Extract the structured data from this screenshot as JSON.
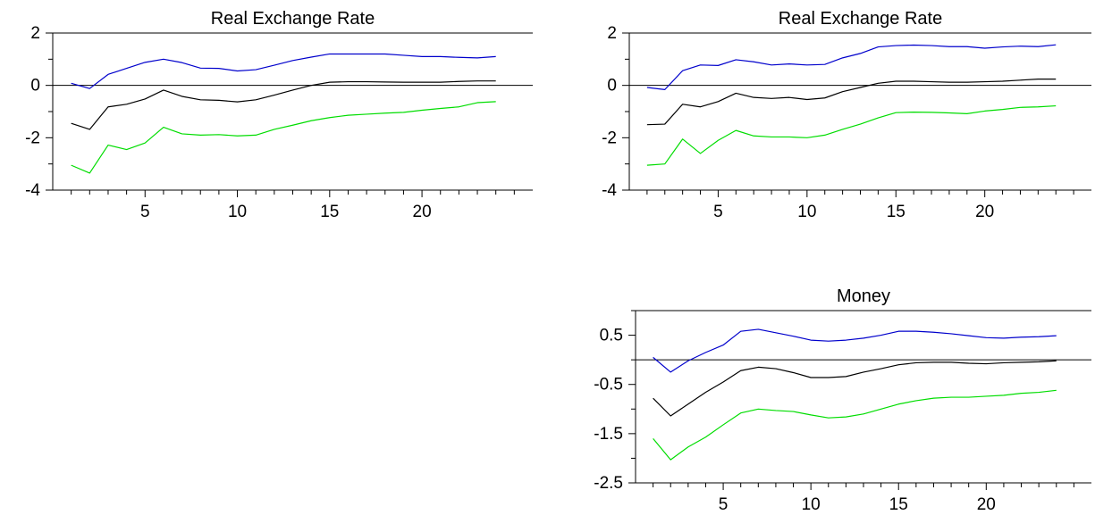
{
  "chart_data": [
    {
      "type": "line",
      "title": "Real Exchange Rate",
      "xlabel": "",
      "ylabel": "",
      "x": [
        1,
        2,
        3,
        4,
        5,
        6,
        7,
        8,
        9,
        10,
        11,
        12,
        13,
        14,
        15,
        16,
        17,
        18,
        19,
        20,
        21,
        22,
        23,
        24
      ],
      "xticks": [
        5,
        10,
        15,
        20
      ],
      "xtick_labels": [
        "5",
        "10",
        "15",
        "20"
      ],
      "yticks": [
        2,
        0,
        -2,
        -4
      ],
      "ytick_labels": [
        "2",
        "0",
        "-2",
        "-4"
      ],
      "xlim": [
        0,
        26
      ],
      "ylim": [
        -4,
        2
      ],
      "grid": false,
      "zero_line": true,
      "series": [
        {
          "color": "#0000cc",
          "values": [
            0.08,
            -0.12,
            0.42,
            0.65,
            0.88,
            1.0,
            0.87,
            0.66,
            0.65,
            0.55,
            0.6,
            0.77,
            0.95,
            1.08,
            1.2,
            1.2,
            1.2,
            1.2,
            1.15,
            1.1,
            1.1,
            1.07,
            1.05,
            1.1
          ]
        },
        {
          "color": "#000000",
          "values": [
            -1.45,
            -1.68,
            -0.82,
            -0.72,
            -0.52,
            -0.18,
            -0.42,
            -0.55,
            -0.57,
            -0.63,
            -0.55,
            -0.37,
            -0.18,
            0.0,
            0.12,
            0.14,
            0.14,
            0.13,
            0.12,
            0.12,
            0.12,
            0.15,
            0.17,
            0.17
          ]
        },
        {
          "color": "#00dd00",
          "values": [
            -3.05,
            -3.35,
            -2.28,
            -2.45,
            -2.2,
            -1.6,
            -1.85,
            -1.9,
            -1.88,
            -1.93,
            -1.9,
            -1.68,
            -1.52,
            -1.35,
            -1.23,
            -1.14,
            -1.1,
            -1.06,
            -1.03,
            -0.95,
            -0.88,
            -0.82,
            -0.66,
            -0.62
          ]
        }
      ]
    },
    {
      "type": "line",
      "title": "Real Exchange Rate",
      "xlabel": "",
      "ylabel": "",
      "x": [
        1,
        2,
        3,
        4,
        5,
        6,
        7,
        8,
        9,
        10,
        11,
        12,
        13,
        14,
        15,
        16,
        17,
        18,
        19,
        20,
        21,
        22,
        23,
        24
      ],
      "xticks": [
        5,
        10,
        15,
        20
      ],
      "xtick_labels": [
        "5",
        "10",
        "15",
        "20"
      ],
      "yticks": [
        2,
        0,
        -2,
        -4
      ],
      "ytick_labels": [
        "2",
        "0",
        "-2",
        "-4"
      ],
      "xlim": [
        0,
        26
      ],
      "ylim": [
        -4,
        2
      ],
      "grid": false,
      "zero_line": true,
      "series": [
        {
          "color": "#0000cc",
          "values": [
            -0.08,
            -0.16,
            0.56,
            0.78,
            0.76,
            0.98,
            0.9,
            0.78,
            0.82,
            0.78,
            0.8,
            1.05,
            1.22,
            1.47,
            1.52,
            1.54,
            1.52,
            1.48,
            1.48,
            1.42,
            1.47,
            1.5,
            1.48,
            1.55
          ]
        },
        {
          "color": "#000000",
          "values": [
            -1.5,
            -1.48,
            -0.72,
            -0.82,
            -0.62,
            -0.3,
            -0.46,
            -0.5,
            -0.46,
            -0.54,
            -0.48,
            -0.24,
            -0.08,
            0.08,
            0.16,
            0.16,
            0.14,
            0.12,
            0.12,
            0.14,
            0.16,
            0.2,
            0.24,
            0.24
          ]
        },
        {
          "color": "#00dd00",
          "values": [
            -3.05,
            -3.0,
            -2.05,
            -2.6,
            -2.1,
            -1.72,
            -1.93,
            -1.97,
            -1.97,
            -2.0,
            -1.9,
            -1.68,
            -1.48,
            -1.24,
            -1.04,
            -1.02,
            -1.03,
            -1.05,
            -1.08,
            -0.98,
            -0.92,
            -0.84,
            -0.82,
            -0.78
          ]
        }
      ]
    },
    {
      "type": "line",
      "title": "Money",
      "xlabel": "",
      "ylabel": "",
      "x": [
        1,
        2,
        3,
        4,
        5,
        6,
        7,
        8,
        9,
        10,
        11,
        12,
        13,
        14,
        15,
        16,
        17,
        18,
        19,
        20,
        21,
        22,
        23,
        24
      ],
      "xticks": [
        5,
        10,
        15,
        20
      ],
      "xtick_labels": [
        "5",
        "10",
        "15",
        "20"
      ],
      "yticks": [
        0.5,
        -0.5,
        -1.5,
        -2.5
      ],
      "ytick_labels": [
        "0.5",
        "-0.5",
        "-1.5",
        "-2.5"
      ],
      "xlim": [
        0,
        26
      ],
      "ylim": [
        -2.5,
        1.0
      ],
      "grid": false,
      "zero_line": true,
      "series": [
        {
          "color": "#0000cc",
          "values": [
            0.05,
            -0.25,
            -0.02,
            0.15,
            0.3,
            0.58,
            0.62,
            0.55,
            0.48,
            0.4,
            0.38,
            0.4,
            0.44,
            0.5,
            0.58,
            0.58,
            0.56,
            0.53,
            0.49,
            0.45,
            0.44,
            0.46,
            0.47,
            0.49
          ]
        },
        {
          "color": "#000000",
          "values": [
            -0.78,
            -1.14,
            -0.9,
            -0.66,
            -0.45,
            -0.22,
            -0.15,
            -0.18,
            -0.26,
            -0.36,
            -0.36,
            -0.34,
            -0.25,
            -0.18,
            -0.1,
            -0.06,
            -0.05,
            -0.05,
            -0.07,
            -0.08,
            -0.06,
            -0.05,
            -0.04,
            -0.02
          ]
        },
        {
          "color": "#00dd00",
          "values": [
            -1.6,
            -2.03,
            -1.77,
            -1.57,
            -1.32,
            -1.08,
            -1.0,
            -1.03,
            -1.05,
            -1.12,
            -1.18,
            -1.16,
            -1.1,
            -1.0,
            -0.9,
            -0.83,
            -0.78,
            -0.76,
            -0.76,
            -0.74,
            -0.72,
            -0.68,
            -0.66,
            -0.62
          ]
        }
      ]
    }
  ]
}
